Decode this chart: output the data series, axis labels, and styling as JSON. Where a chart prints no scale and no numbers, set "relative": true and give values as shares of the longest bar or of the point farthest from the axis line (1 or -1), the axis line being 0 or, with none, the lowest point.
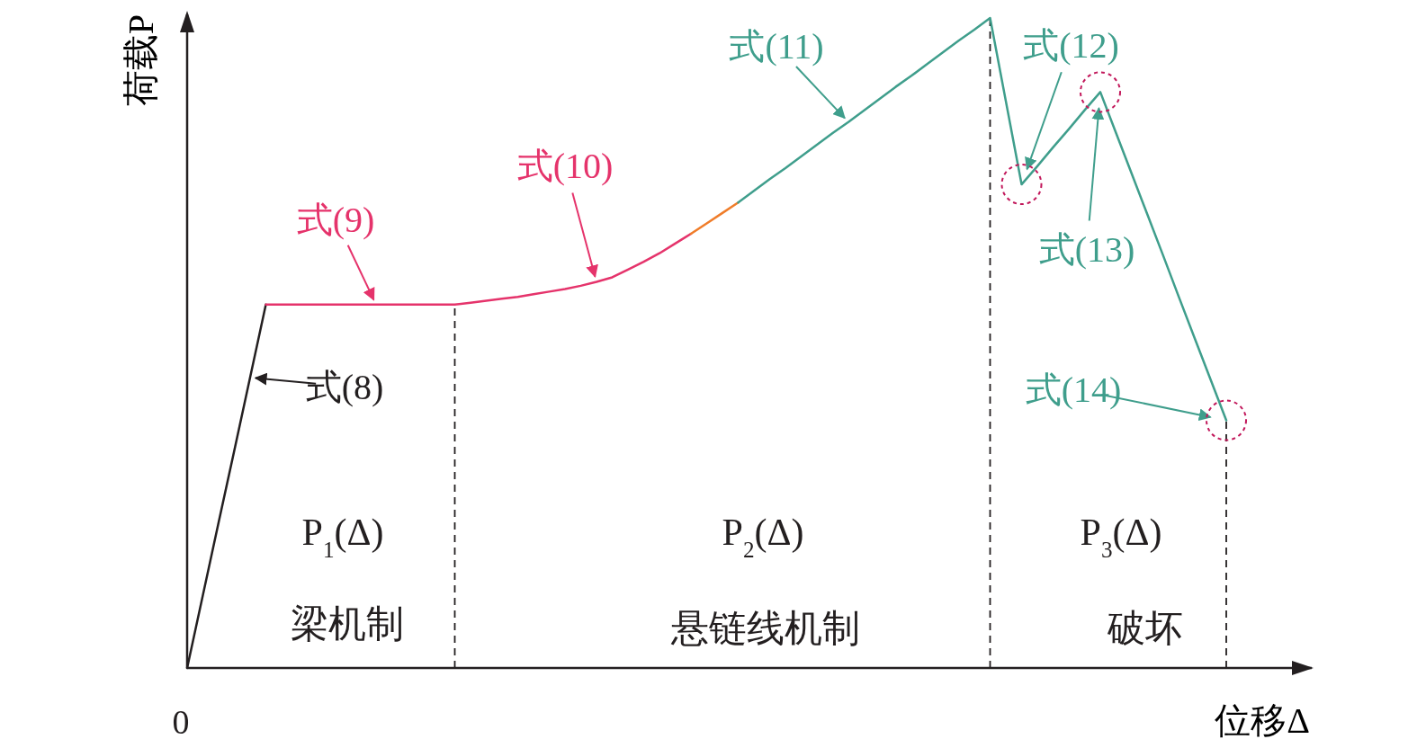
{
  "chart_data": {
    "type": "line",
    "relative": true,
    "xlabel": "位移Δ",
    "ylabel": "荷载P",
    "line_style": "solid",
    "categories": [
      null,
      null,
      null,
      null,
      null,
      null,
      null,
      null,
      null,
      null,
      null,
      null,
      null,
      null,
      null,
      null,
      null,
      null,
      null,
      null,
      null,
      null,
      null,
      null,
      null,
      null,
      null,
      null,
      null,
      null,
      null,
      null,
      null,
      null,
      null,
      null,
      null,
      null,
      null,
      null,
      null,
      null,
      null,
      null,
      null,
      null,
      null,
      null,
      null,
      null,
      null,
      null,
      null,
      null,
      null,
      null,
      null,
      null,
      null,
      null,
      null,
      null,
      null,
      null,
      null,
      null,
      null
    ],
    "series": [
      {
        "color": "#231f20",
        "values": [
          0,
          0.112,
          0.224,
          0.335,
          0.447,
          0.559,
          null,
          null,
          null,
          null,
          null,
          null,
          null,
          null,
          null,
          null,
          null,
          null,
          null,
          null,
          null,
          null,
          null,
          null,
          null,
          null,
          null,
          null,
          null,
          null,
          null,
          null,
          null,
          null,
          null,
          null,
          null,
          null,
          null,
          null,
          null,
          null,
          null,
          null,
          null,
          null,
          null,
          null,
          null,
          null,
          null,
          null,
          null,
          null,
          null,
          null,
          null,
          null,
          null,
          null,
          null,
          null,
          null,
          null,
          null,
          null,
          null
        ]
      },
      {
        "color": "#e5336b",
        "values": [
          null,
          null,
          null,
          null,
          null,
          0.559,
          0.559,
          0.559,
          0.559,
          0.559,
          0.559,
          0.559,
          0.559,
          0.559,
          0.559,
          0.559,
          0.559,
          0.559,
          0.562,
          0.565,
          0.568,
          0.571,
          0.575,
          0.579,
          0.583,
          0.588,
          0.594,
          0.601,
          0.613,
          0.625,
          0.638,
          0.653,
          0.668,
          null,
          null,
          null,
          null,
          null,
          null,
          null,
          null,
          null,
          null,
          null,
          null,
          null,
          null,
          null,
          null,
          null,
          null,
          null,
          null,
          null,
          null,
          null,
          null,
          null,
          null,
          null,
          null,
          null,
          null,
          null,
          null,
          null,
          null
        ]
      },
      {
        "color": "#f07d2a",
        "values": [
          null,
          null,
          null,
          null,
          null,
          null,
          null,
          null,
          null,
          null,
          null,
          null,
          null,
          null,
          null,
          null,
          null,
          null,
          null,
          null,
          null,
          null,
          null,
          null,
          null,
          null,
          null,
          null,
          null,
          null,
          null,
          null,
          0.668,
          0.684,
          0.7,
          0.716,
          null,
          null,
          null,
          null,
          null,
          null,
          null,
          null,
          null,
          null,
          null,
          null,
          null,
          null,
          null,
          null,
          null,
          null,
          null,
          null,
          null,
          null,
          null,
          null,
          null,
          null,
          null,
          null,
          null,
          null,
          null
        ]
      },
      {
        "color": "#3f9e8c",
        "values": [
          null,
          null,
          null,
          null,
          null,
          null,
          null,
          null,
          null,
          null,
          null,
          null,
          null,
          null,
          null,
          null,
          null,
          null,
          null,
          null,
          null,
          null,
          null,
          null,
          null,
          null,
          null,
          null,
          null,
          null,
          null,
          null,
          null,
          null,
          null,
          0.716,
          0.734,
          0.752,
          0.769,
          0.787,
          0.805,
          0.823,
          0.84,
          0.858,
          0.876,
          0.894,
          0.911,
          0.929,
          0.947,
          0.965,
          0.982,
          1,
          0.872,
          0.744,
          0.772,
          0.801,
          0.829,
          0.858,
          0.886,
          0.823,
          0.76,
          0.697,
          0.634,
          0.57,
          0.507,
          0.444,
          0.381
        ]
      }
    ],
    "annotations": [
      "式(8)",
      "式(9)",
      "式(10)",
      "式(11)",
      "式(12)",
      "式(13)",
      "式(14)",
      "P$_{1}$(Δ)",
      "梁机制",
      "P$_{2}$(Δ)",
      "悬链线机制",
      "P$_{3}$(Δ)",
      "破坏",
      "0"
    ]
  }
}
